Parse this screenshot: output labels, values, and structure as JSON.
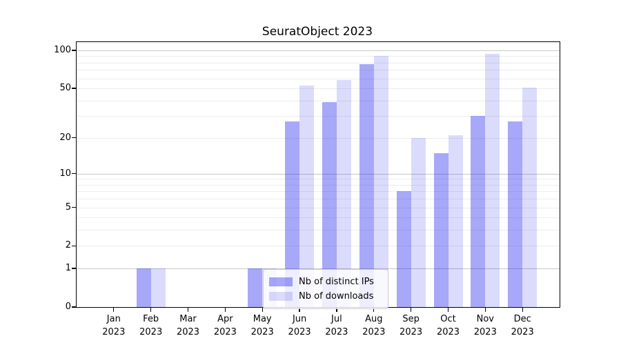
{
  "title": "SeuratObject 2023",
  "chart_data": {
    "type": "bar",
    "title": "SeuratObject 2023",
    "categories": [
      "Jan",
      "Feb",
      "Mar",
      "Apr",
      "May",
      "Jun",
      "Jul",
      "Aug",
      "Sep",
      "Oct",
      "Nov",
      "Dec"
    ],
    "category_year": "2023",
    "series": [
      {
        "name": "Nb of distinct IPs",
        "color": "rgba(0,0,235,0.34)",
        "values": [
          0,
          1,
          0,
          0,
          1,
          27,
          39,
          78,
          7,
          15,
          30,
          27
        ]
      },
      {
        "name": "Nb of downloads",
        "color": "rgba(0,0,235,0.14)",
        "values": [
          0,
          1,
          0,
          0,
          1,
          53,
          58,
          90,
          20,
          21,
          94,
          51
        ]
      }
    ],
    "xlabel": "",
    "ylabel": "",
    "y_scale": "log1p",
    "y_ticks": [
      100,
      50,
      20,
      10,
      5,
      2,
      1,
      0
    ],
    "y_major_gridlines": [
      1,
      10,
      100
    ],
    "y_minor_gridlines": [
      2,
      3,
      4,
      5,
      6,
      7,
      8,
      9,
      20,
      30,
      40,
      50,
      60,
      70,
      80,
      90
    ],
    "ylim": [
      0,
      116
    ],
    "grid": "on",
    "legend_position": "inside-lower-center"
  },
  "colors": {
    "bar_dark": "rgba(0,0,235,0.34)",
    "bar_light": "rgba(0,0,235,0.14)",
    "grid_major": "#c8c8c8",
    "grid_minor": "#ededed",
    "spine": "#000000",
    "background": "#ffffff"
  }
}
